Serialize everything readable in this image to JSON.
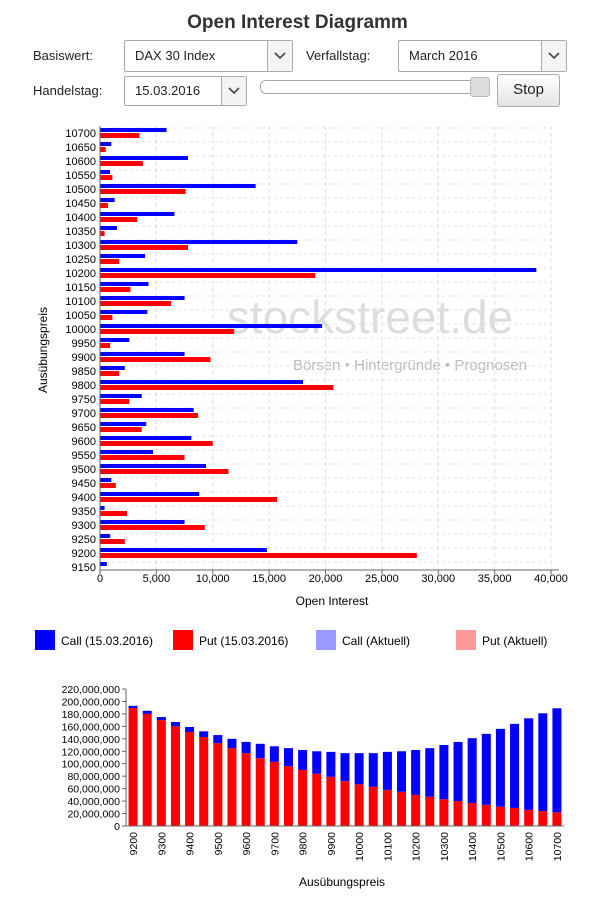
{
  "header": {
    "title": "Open Interest Diagramm"
  },
  "controls": {
    "basiswert_label": "Basiswert:",
    "basiswert": "DAX 30 Index",
    "verfallstag_label": "Verfallstag:",
    "verfallstag": "March 2016",
    "handelstag_label": "Handelstag:",
    "handelstag": "15.03.2016",
    "button": "Stop"
  },
  "watermark": {
    "brand": "stockstreet.de",
    "tagline": "Börsen • Hintergründe • Prognosen"
  },
  "chart_data": [
    {
      "type": "hbar",
      "xlabel": "Open Interest",
      "ylabel": "Ausübungspreis",
      "categories": [
        "10700",
        "10650",
        "10600",
        "10550",
        "10500",
        "10450",
        "10400",
        "10350",
        "10300",
        "10250",
        "10200",
        "10150",
        "10100",
        "10050",
        "10000",
        "9950",
        "9900",
        "9850",
        "9800",
        "9750",
        "9700",
        "9650",
        "9600",
        "9550",
        "9500",
        "9450",
        "9400",
        "9350",
        "9300",
        "9250",
        "9200",
        "9150"
      ],
      "series": [
        {
          "name": "Call (15.03.2016)",
          "color": "#0000ff",
          "values": [
            5900,
            1000,
            7800,
            900,
            13800,
            1300,
            6600,
            1500,
            17500,
            4000,
            38700,
            4300,
            7500,
            4200,
            19700,
            2600,
            7500,
            2200,
            18000,
            3700,
            8300,
            4100,
            8100,
            4700,
            9400,
            1000,
            8800,
            400,
            7500,
            900,
            14800,
            600
          ]
        },
        {
          "name": "Put (15.03.2016)",
          "color": "#ff0000",
          "values": [
            3500,
            500,
            3800,
            1100,
            7600,
            700,
            3300,
            400,
            7800,
            1700,
            19100,
            2700,
            6300,
            1100,
            11900,
            900,
            9800,
            1700,
            20700,
            2600,
            8700,
            3700,
            10000,
            7500,
            11400,
            1400,
            15700,
            2400,
            9300,
            2200,
            28100,
            0
          ]
        },
        {
          "name": "Call (Aktuell)",
          "color": "#9999ff",
          "values": [
            null,
            null,
            null,
            null,
            null,
            null,
            null,
            null,
            null,
            null,
            null,
            null,
            null,
            null,
            null,
            null,
            null,
            null,
            null,
            null,
            null,
            null,
            null,
            null,
            null,
            null,
            null,
            null,
            null,
            null,
            null,
            null
          ]
        },
        {
          "name": "Put (Aktuell)",
          "color": "#ff9999",
          "values": [
            null,
            null,
            null,
            null,
            null,
            null,
            null,
            null,
            null,
            null,
            null,
            null,
            null,
            null,
            null,
            null,
            null,
            null,
            null,
            null,
            null,
            null,
            null,
            null,
            null,
            null,
            null,
            null,
            null,
            null,
            null,
            null
          ]
        }
      ],
      "xlim": [
        0,
        40000
      ],
      "xticks": [
        0,
        {
          "value": 5000,
          "label": "5,000"
        },
        {
          "value": 10000,
          "label": "10,000"
        },
        {
          "value": 15000,
          "label": "15,000"
        },
        {
          "value": 20000,
          "label": "20,000"
        },
        {
          "value": 25000,
          "label": "25,000"
        },
        {
          "value": 30000,
          "label": "30,000"
        },
        {
          "value": 35000,
          "label": "35,000"
        },
        {
          "value": 40000,
          "label": "40,000"
        }
      ],
      "grid": true
    },
    {
      "type": "stacked_bar",
      "xlabel": "Ausübungspreis",
      "categories": [
        "9200",
        null,
        "9300",
        null,
        "9400",
        null,
        "9500",
        null,
        "9600",
        null,
        "9700",
        null,
        "9800",
        null,
        "9900",
        null,
        "10000",
        null,
        "10100",
        null,
        "10200",
        null,
        "10300",
        null,
        "10400",
        null,
        "10500",
        null,
        "10600",
        null,
        "10700"
      ],
      "series": [
        {
          "color": "#ff0000",
          "values": [
            189500000,
            180000000,
            170000000,
            160000000,
            151000000,
            143000000,
            133000000,
            125000000,
            117000000,
            109000000,
            103000000,
            96000000,
            90000000,
            84000000,
            79000000,
            72000000,
            67000000,
            63000000,
            58000000,
            55000000,
            50000000,
            47000000,
            43000000,
            40000000,
            37000000,
            34000000,
            31000000,
            29000000,
            26000000,
            24000000,
            22000000
          ]
        },
        {
          "color": "#0000ff",
          "values": [
            3500000,
            5000000,
            5000000,
            7000000,
            8000000,
            9000000,
            13000000,
            15000000,
            18000000,
            23000000,
            25000000,
            29000000,
            32000000,
            36000000,
            40000000,
            45000000,
            50000000,
            54000000,
            61000000,
            65000000,
            72000000,
            78000000,
            87000000,
            95000000,
            104000000,
            114000000,
            125000000,
            135000000,
            147000000,
            157000000,
            167000000
          ]
        }
      ],
      "ylim": [
        0,
        220000000
      ],
      "yticks": [
        0,
        {
          "value": 20000000,
          "label": "20,000,000"
        },
        {
          "value": 40000000,
          "label": "40,000,000"
        },
        {
          "value": 60000000,
          "label": "60,000,000"
        },
        {
          "value": 80000000,
          "label": "80,000,000"
        },
        {
          "value": 100000000,
          "label": "100,000,000"
        },
        {
          "value": 120000000,
          "label": "120,000,000"
        },
        {
          "value": 140000000,
          "label": "140,000,000"
        },
        {
          "value": 160000000,
          "label": "160,000,000"
        },
        {
          "value": 180000000,
          "label": "180,000,000"
        },
        {
          "value": 200000000,
          "label": "200,000,000"
        },
        {
          "value": 220000000,
          "label": "220,000,000"
        }
      ],
      "grid": false
    }
  ]
}
